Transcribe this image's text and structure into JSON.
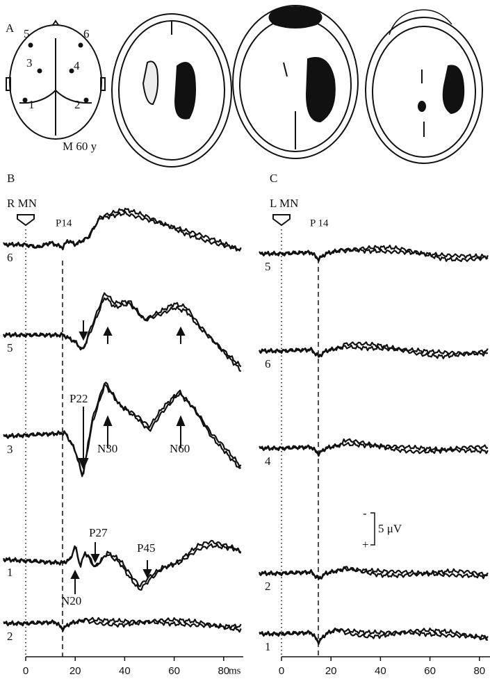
{
  "panel_a": {
    "label": "A",
    "electrodes": [
      "5",
      "6",
      "3",
      "4",
      "1",
      "2"
    ],
    "caption": "M 60 y"
  },
  "panel_b": {
    "label": "B",
    "stimulus": "R MN",
    "traces": [
      "6",
      "5",
      "3",
      "1",
      "2"
    ],
    "annotations": [
      "P14",
      "P22",
      "N30",
      "N60",
      "P27",
      "P45",
      "N20"
    ],
    "x_ticks": [
      0,
      20,
      40,
      60,
      80
    ],
    "x_unit": "ms"
  },
  "panel_c": {
    "label": "C",
    "stimulus": "L MN",
    "traces": [
      "5",
      "6",
      "4",
      "2",
      "1"
    ],
    "annotations": [
      "P 14"
    ],
    "x_ticks": [
      0,
      20,
      40,
      60,
      80
    ],
    "scale_minus": "-",
    "scale_plus": "+",
    "scale_label": "5 μV"
  }
}
